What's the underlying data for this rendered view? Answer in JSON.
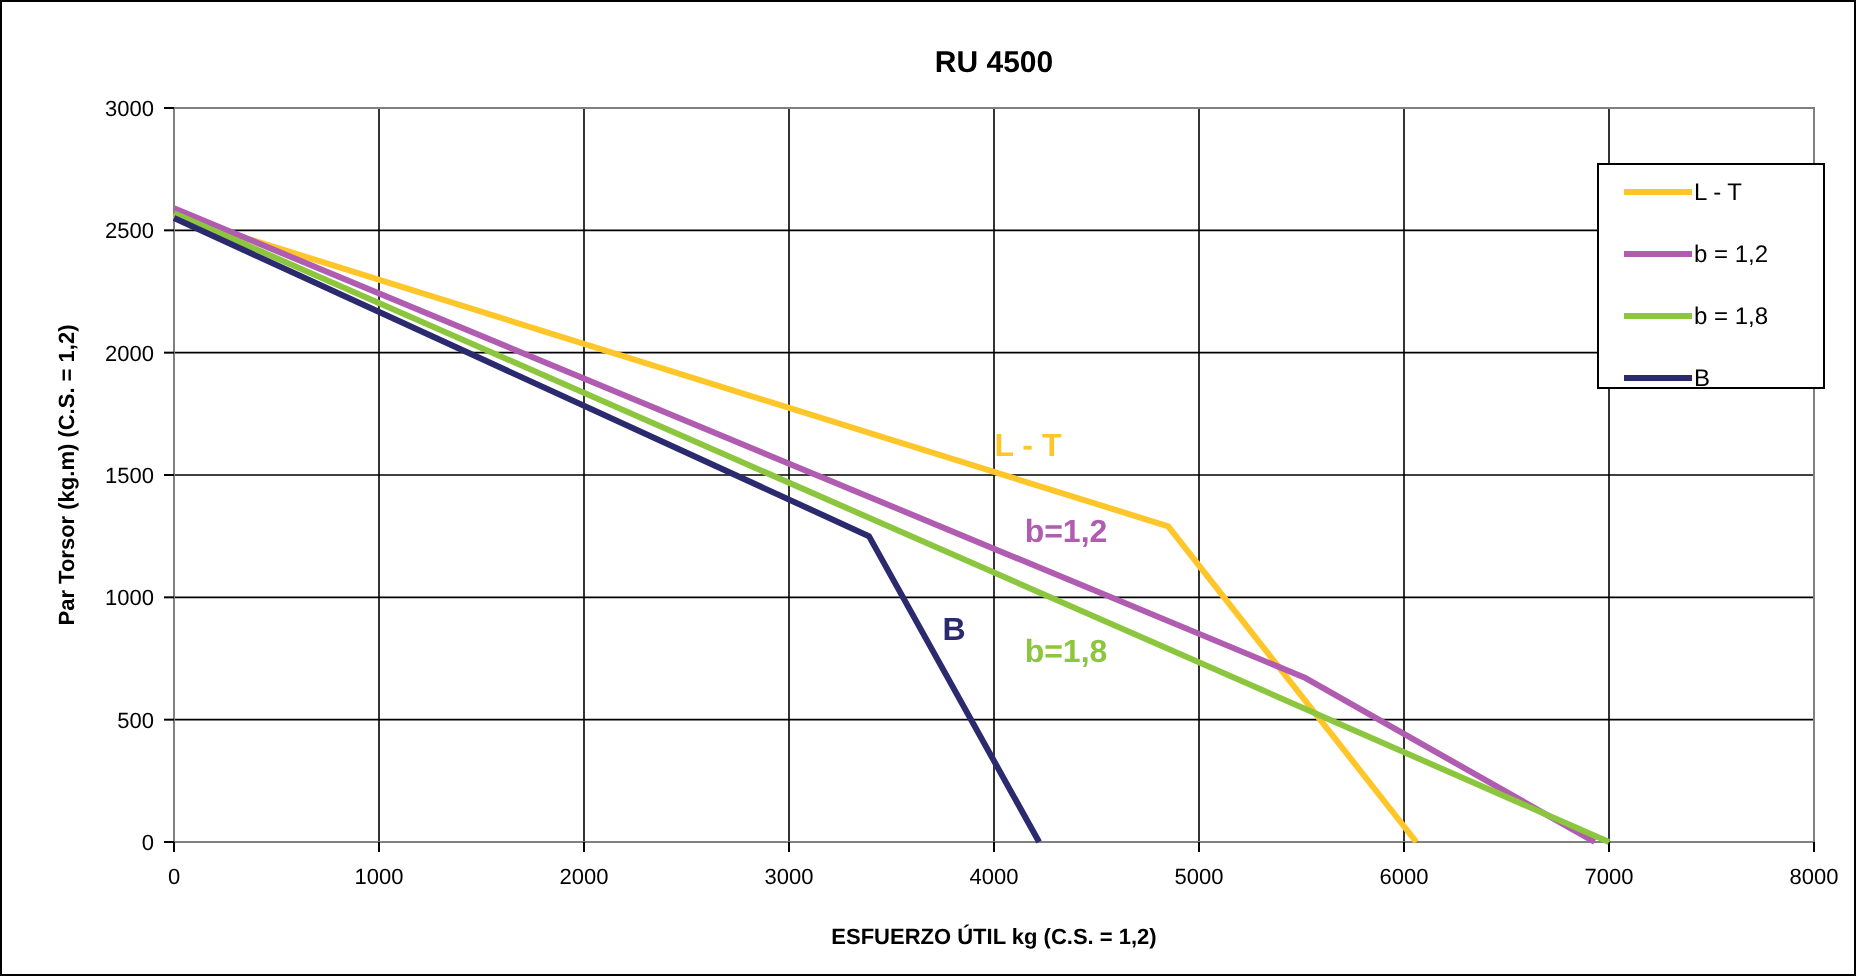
{
  "chart_data": {
    "type": "line",
    "title": "RU 4500",
    "xlabel": "ESFUERZO ÚTIL kg (C.S. = 1,2)",
    "ylabel": "Par Torsor (kg.m) (C.S. = 1,2)",
    "xlim": [
      0,
      8000
    ],
    "ylim": [
      0,
      3000
    ],
    "xticks": [
      0,
      1000,
      2000,
      3000,
      4000,
      5000,
      6000,
      7000,
      8000
    ],
    "yticks": [
      0,
      500,
      1000,
      1500,
      2000,
      2500,
      3000
    ],
    "grid": true,
    "legend": "top right",
    "marker": "none",
    "line_style": "solid",
    "series": [
      {
        "name": "L - T",
        "color": "#ffc62a",
        "x": [
          0,
          4850,
          6060
        ],
        "values": [
          2560,
          1290,
          0
        ]
      },
      {
        "name": "b = 1,2",
        "color": "#b05cb0",
        "x": [
          0,
          5520,
          6930
        ],
        "values": [
          2590,
          670,
          0
        ]
      },
      {
        "name": "b = 1,8",
        "color": "#8cc63f",
        "x": [
          0,
          7000
        ],
        "values": [
          2570,
          0
        ]
      },
      {
        "name": "B",
        "color": "#2b2a6e",
        "x": [
          0,
          3390,
          4220
        ],
        "values": [
          2550,
          1250,
          0
        ]
      }
    ],
    "annotations": [
      "L - T",
      "b=1,2",
      "b=1,8",
      "B"
    ]
  }
}
